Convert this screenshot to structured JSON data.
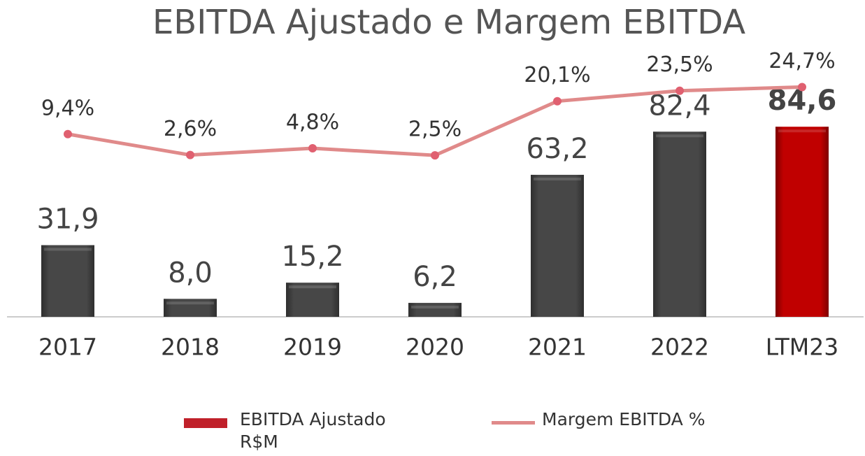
{
  "chart_data": {
    "type": "bar-line",
    "title": "EBITDA Ajustado e Margem EBITDA",
    "categories": [
      "2017",
      "2018",
      "2019",
      "2020",
      "2021",
      "2022",
      "LTM23"
    ],
    "series": [
      {
        "name": "EBITDA Ajustado R$M",
        "type": "bar",
        "color": "#c0202a",
        "colors": [
          "#474747",
          "#474747",
          "#474747",
          "#474747",
          "#474747",
          "#474747",
          "#c00000"
        ],
        "values": [
          31.9,
          8.0,
          15.2,
          6.2,
          63.2,
          82.4,
          84.6
        ],
        "value_labels": [
          "31,9",
          "8,0",
          "15,2",
          "6,2",
          "63,2",
          "82,4",
          "84,6"
        ]
      },
      {
        "name": "Margem EBITDA %",
        "type": "line",
        "axis": "y2",
        "color": "#e08a8a",
        "values": [
          9.4,
          2.6,
          4.8,
          2.5,
          20.1,
          23.5,
          24.7
        ],
        "value_labels": [
          "9,4%",
          "2,6%",
          "4,8%",
          "2,5%",
          "20,1%",
          "23,5%",
          "24,7%"
        ]
      }
    ],
    "ylim": [
      0,
      141
    ],
    "y2lim": [
      -50,
      53
    ]
  }
}
